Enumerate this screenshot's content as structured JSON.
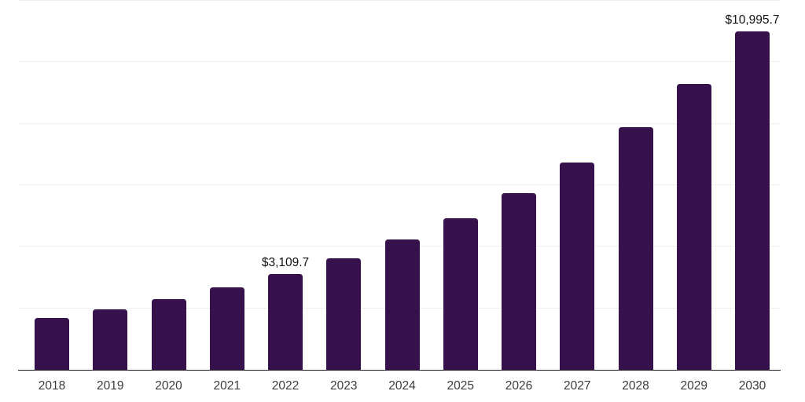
{
  "chart_data": {
    "type": "bar",
    "title": "",
    "xlabel": "",
    "ylabel": "",
    "categories": [
      "2018",
      "2019",
      "2020",
      "2021",
      "2022",
      "2023",
      "2024",
      "2025",
      "2026",
      "2027",
      "2028",
      "2029",
      "2030"
    ],
    "values": [
      1690,
      1970,
      2300,
      2680,
      3109.7,
      3630,
      4240,
      4930,
      5740,
      6740,
      7890,
      9290,
      10995.7
    ],
    "value_labels": {
      "2022": "$3,109.7",
      "2030": "$10,995.7"
    },
    "ylim": [
      0,
      12000
    ],
    "grid_step": 2000,
    "grid": true,
    "legend": false,
    "colors": {
      "bar": "#36114B",
      "grid": "#efeff0",
      "axis": "#1f1f1f",
      "value_label": "#131313",
      "tick_label": "#3c3c3c",
      "background": "#ffffff"
    }
  }
}
